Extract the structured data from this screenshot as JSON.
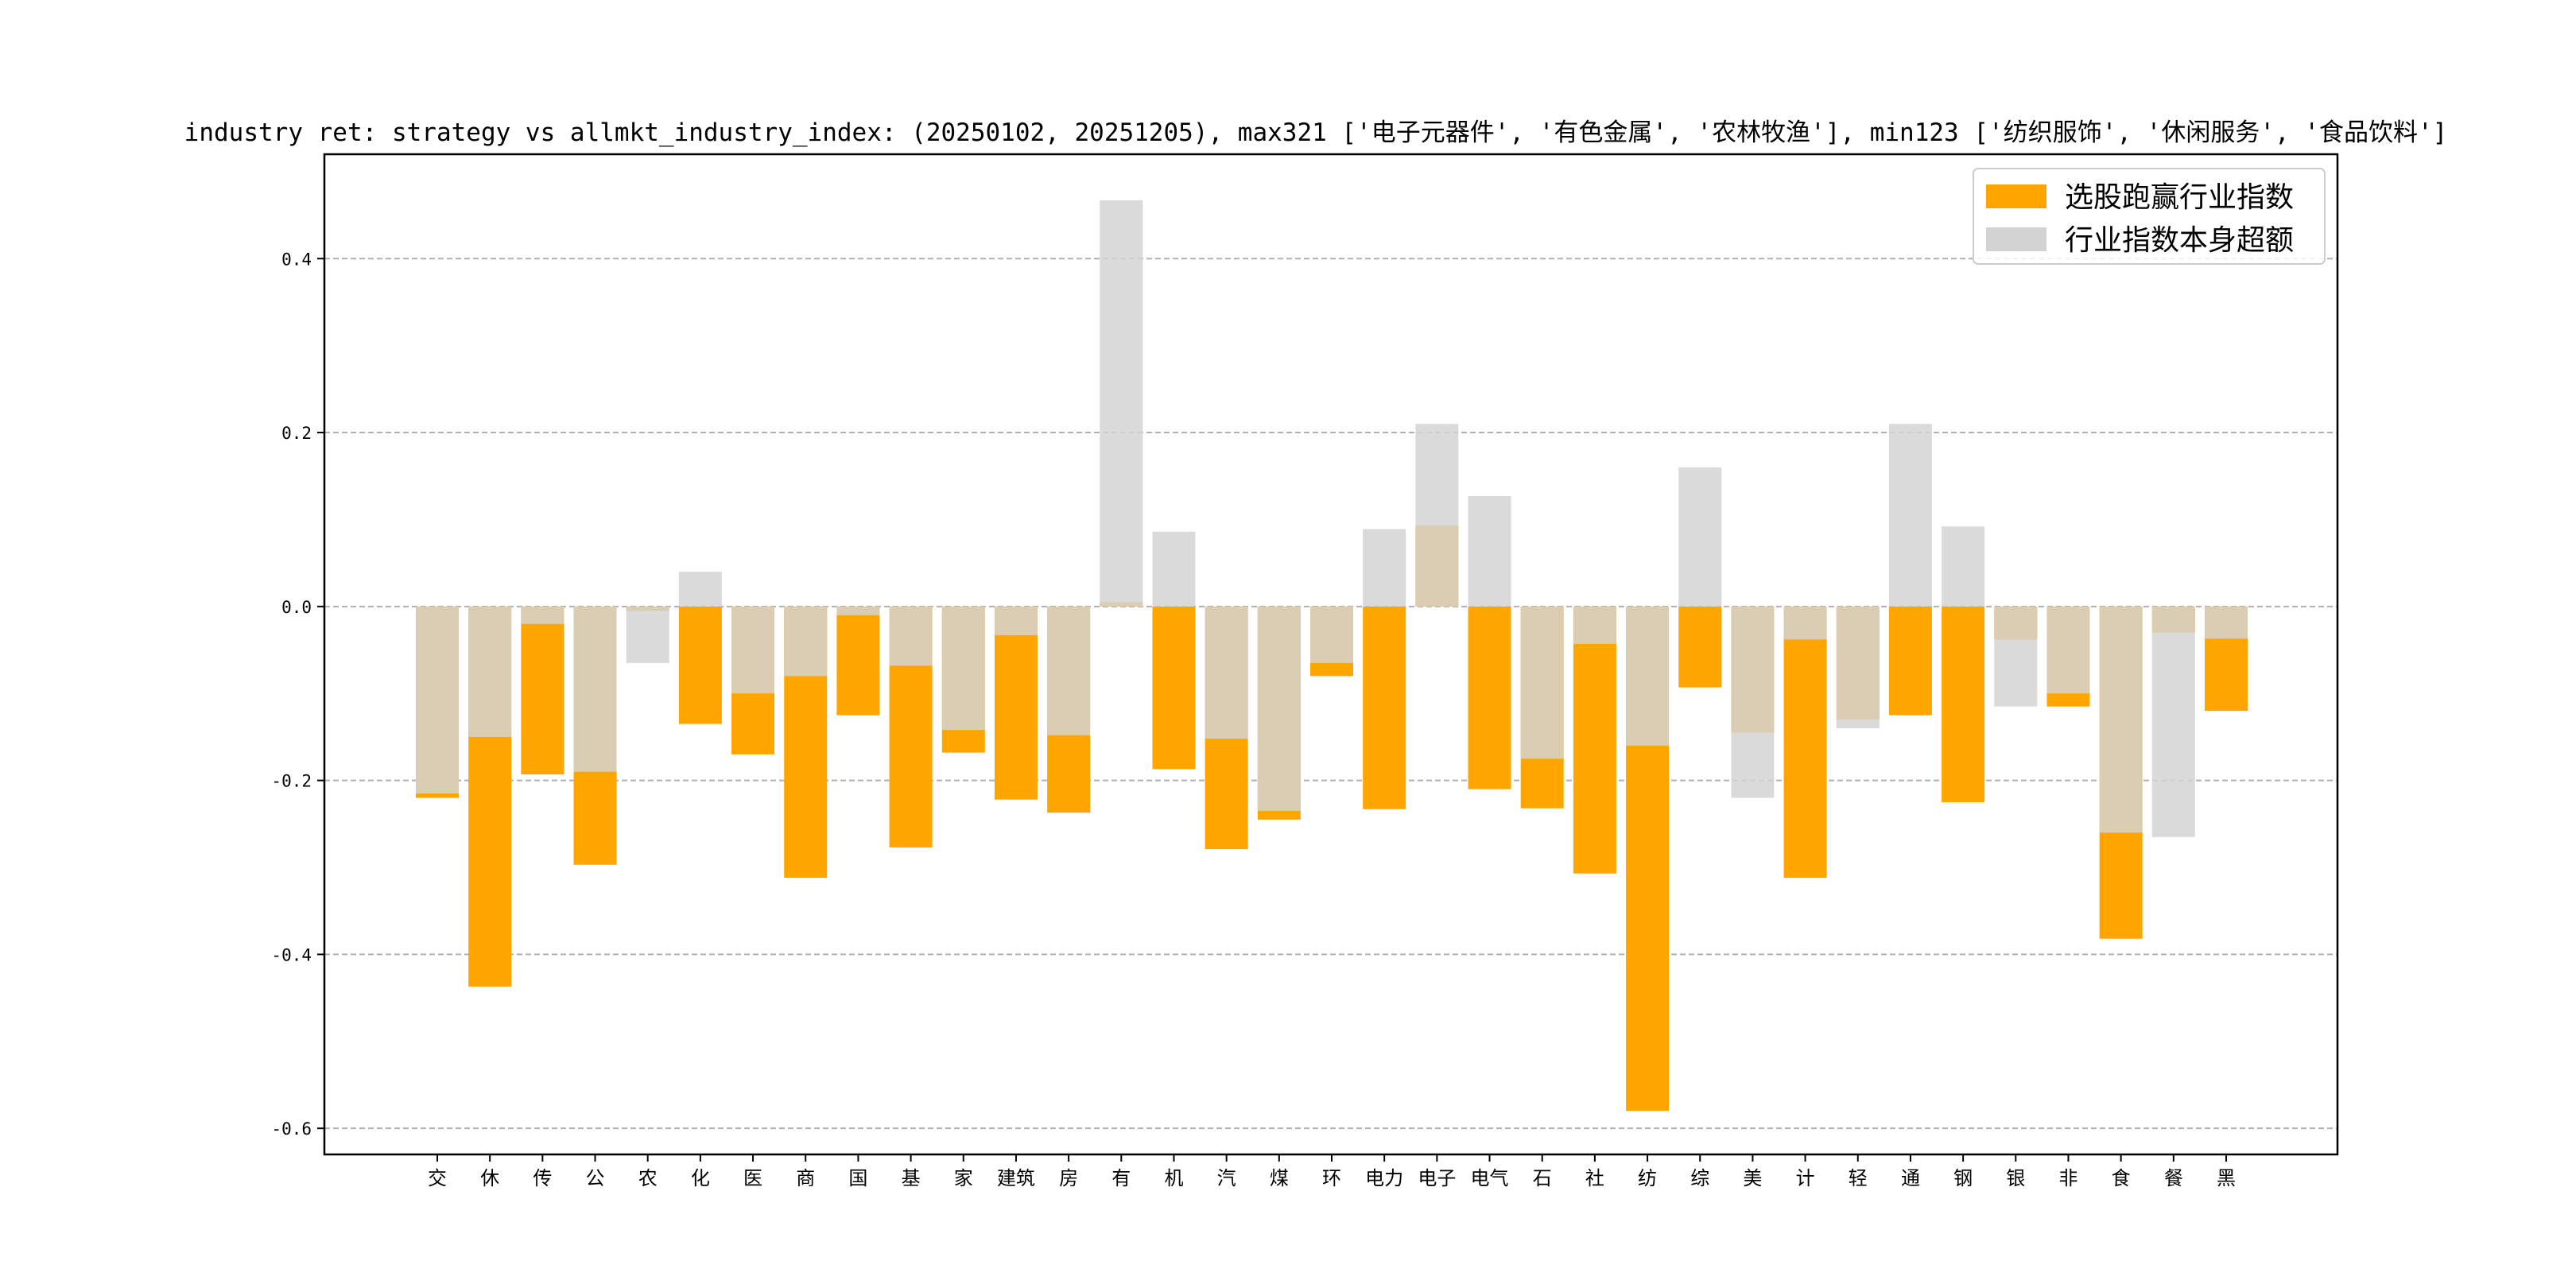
{
  "chart_data": {
    "type": "bar",
    "title": "industry ret: strategy vs allmkt_industry_index: (20250102, 20251205), max321 ['电子元器件', '有色金属', '农林牧渔'], min123 ['纺织服饰', '休闲服务', '食品饮料']",
    "xlabel": "",
    "ylabel": "",
    "ylim": [
      -0.63,
      0.52
    ],
    "yticks": [
      -0.6,
      -0.4,
      -0.2,
      0.0,
      0.2,
      0.4
    ],
    "ytick_labels": [
      "-0.6",
      "-0.4",
      "-0.2",
      "0.0",
      "0.2",
      "0.4"
    ],
    "grid": "horizontal dashed",
    "legend_position": "top-right",
    "categories": [
      "交",
      "休",
      "传",
      "公",
      "农",
      "化",
      "医",
      "商",
      "国",
      "基",
      "家",
      "建筑",
      "房",
      "有",
      "机",
      "汽",
      "煤",
      "环",
      "电力",
      "电子",
      "电气",
      "石",
      "社",
      "纺",
      "综",
      "美",
      "计",
      "轻",
      "通",
      "钢",
      "银",
      "非",
      "食",
      "餐",
      "黑"
    ],
    "series": [
      {
        "name": "选股跑赢行业指数",
        "color": "#FFA500",
        "values": [
          -0.22,
          -0.437,
          -0.193,
          -0.297,
          -0.005,
          -0.135,
          -0.17,
          -0.312,
          -0.125,
          -0.277,
          -0.168,
          -0.222,
          -0.237,
          0.005,
          -0.187,
          -0.279,
          -0.245,
          -0.08,
          -0.233,
          0.093,
          -0.21,
          -0.232,
          -0.307,
          -0.58,
          -0.093,
          -0.145,
          -0.312,
          -0.13,
          -0.125,
          -0.225,
          -0.038,
          -0.115,
          -0.382,
          -0.03,
          -0.12
        ]
      },
      {
        "name": "行业指数本身超额",
        "color": "#D3D3D3",
        "values": [
          -0.215,
          -0.15,
          -0.02,
          -0.19,
          -0.065,
          0.04,
          -0.1,
          -0.08,
          -0.01,
          -0.068,
          -0.142,
          -0.033,
          -0.148,
          0.467,
          0.086,
          -0.152,
          -0.235,
          -0.065,
          0.089,
          0.21,
          0.127,
          -0.175,
          -0.043,
          -0.16,
          0.16,
          -0.22,
          -0.038,
          -0.14,
          0.21,
          0.092,
          -0.115,
          -0.1,
          -0.26,
          -0.265,
          -0.037
        ]
      }
    ]
  }
}
